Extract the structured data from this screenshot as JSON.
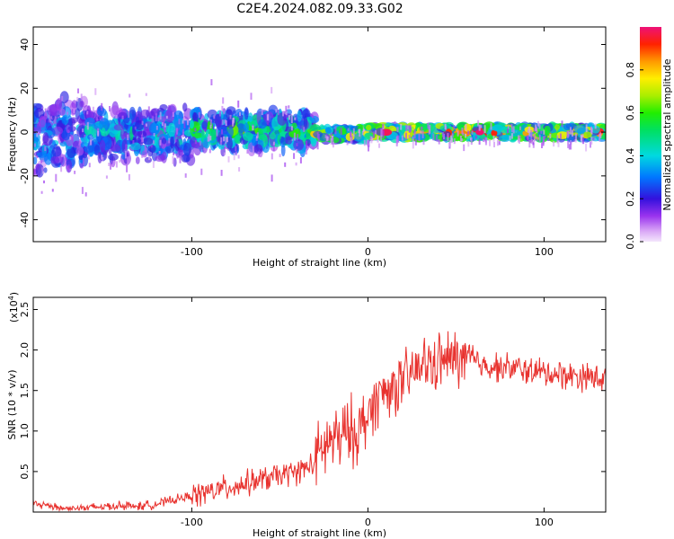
{
  "title": "C2E4.2024.082.09.33.G02",
  "chart_data": [
    {
      "type": "heatmap",
      "name": "spectrogram",
      "xlabel": "Height of straight line (km)",
      "ylabel": "Frequency (Hz)",
      "xlim": [
        -190,
        135
      ],
      "ylim": [
        -50,
        48
      ],
      "x_ticks": [
        -100,
        0,
        100
      ],
      "y_ticks": [
        -40,
        -20,
        0,
        20,
        40
      ],
      "grid": false,
      "colorbar": {
        "label": "Normalized spectral amplitude",
        "range": [
          0.0,
          1.0
        ],
        "ticks": [
          0.0,
          0.2,
          0.4,
          0.6,
          0.8
        ]
      },
      "bands": [
        {
          "x_start": -190,
          "x_end": -160,
          "freq_center": -2,
          "freq_halfwidth": 13,
          "amplitude": 0.3
        },
        {
          "x_start": -160,
          "x_end": -100,
          "freq_center": -1,
          "freq_halfwidth": 9,
          "amplitude": 0.35
        },
        {
          "x_start": -100,
          "x_end": -30,
          "freq_center": 1,
          "freq_halfwidth": 7,
          "amplitude": 0.45
        },
        {
          "x_start": -30,
          "x_end": 0,
          "freq_center": -1,
          "freq_halfwidth": 3,
          "amplitude": 0.6
        },
        {
          "x_start": 0,
          "x_end": 135,
          "freq_center": 0,
          "freq_halfwidth": 3,
          "amplitude": 0.7
        }
      ]
    },
    {
      "type": "line",
      "name": "snr",
      "xlabel": "Height of straight line (km)",
      "ylabel": "SNR (10 * v/v)",
      "y_scale_label": "(x10",
      "y_scale_exponent": "4",
      "y_scale_close": ")",
      "xlim": [
        -190,
        135
      ],
      "ylim": [
        0,
        2.65
      ],
      "x_ticks": [
        -100,
        0,
        100
      ],
      "y_ticks": [
        0.5,
        1.0,
        1.5,
        2.0,
        2.5
      ],
      "color": "#e8322e",
      "grid": false,
      "series": [
        {
          "name": "SNR",
          "x": [
            -190,
            -180,
            -170,
            -160,
            -150,
            -140,
            -130,
            -120,
            -110,
            -100,
            -90,
            -80,
            -70,
            -60,
            -50,
            -40,
            -30,
            -25,
            -20,
            -15,
            -10,
            -5,
            0,
            5,
            10,
            15,
            20,
            25,
            30,
            40,
            50,
            60,
            70,
            80,
            90,
            100,
            110,
            120,
            135
          ],
          "values": [
            0.1,
            0.08,
            0.04,
            0.05,
            0.07,
            0.08,
            0.07,
            0.1,
            0.15,
            0.2,
            0.25,
            0.3,
            0.35,
            0.4,
            0.45,
            0.5,
            0.6,
            0.8,
            0.9,
            0.9,
            1.0,
            1.0,
            1.2,
            1.4,
            1.5,
            1.55,
            1.6,
            1.7,
            1.8,
            1.85,
            1.9,
            1.85,
            1.8,
            1.78,
            1.75,
            1.72,
            1.7,
            1.68,
            1.65
          ]
        }
      ]
    }
  ]
}
